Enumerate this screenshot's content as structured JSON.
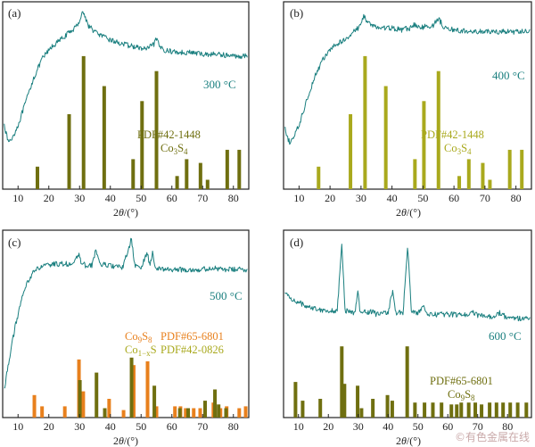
{
  "colors": {
    "curve": "#1a7f7f",
    "olive": "#6f6f10",
    "olive_light": "#a9a91d",
    "orange": "#e8801d",
    "frame": "#222222"
  },
  "xlabel": "2θ/(°)",
  "watermark": "©有色金属在线",
  "chart_data": [
    {
      "type": "line",
      "panel": "(a)",
      "temp": "300 °C",
      "xlim": [
        5,
        85
      ],
      "xticks": [
        10,
        20,
        30,
        40,
        50,
        60,
        70,
        80
      ],
      "grid": false,
      "legend": {
        "code": "PDF#42-1448",
        "formula": "Co3S4"
      },
      "curve_profile": [
        [
          5,
          0.42
        ],
        [
          6,
          0.3
        ],
        [
          7,
          0.25
        ],
        [
          8,
          0.27
        ],
        [
          10,
          0.34
        ],
        [
          12,
          0.44
        ],
        [
          15,
          0.59
        ],
        [
          18,
          0.7
        ],
        [
          21,
          0.76
        ],
        [
          24,
          0.8
        ],
        [
          27,
          0.84
        ],
        [
          29,
          0.87
        ],
        [
          30,
          0.9
        ],
        [
          31,
          0.95
        ],
        [
          32,
          0.91
        ],
        [
          33,
          0.87
        ],
        [
          35,
          0.84
        ],
        [
          38,
          0.81
        ],
        [
          41,
          0.79
        ],
        [
          45,
          0.77
        ],
        [
          48,
          0.76
        ],
        [
          50,
          0.75
        ],
        [
          52,
          0.75
        ],
        [
          54,
          0.77
        ],
        [
          55,
          0.8
        ],
        [
          56,
          0.76
        ],
        [
          58,
          0.74
        ],
        [
          62,
          0.73
        ],
        [
          66,
          0.73
        ],
        [
          70,
          0.72
        ],
        [
          75,
          0.72
        ],
        [
          80,
          0.71
        ],
        [
          85,
          0.71
        ]
      ],
      "reference_series": [
        {
          "name": "PDF#42-1448 Co3S4",
          "color": "olive",
          "peaks": [
            [
              16.3,
              0.12
            ],
            [
              26.6,
              0.4
            ],
            [
              31.3,
              0.71
            ],
            [
              38.0,
              0.55
            ],
            [
              47.4,
              0.16
            ],
            [
              50.3,
              0.47
            ],
            [
              55.0,
              0.63
            ],
            [
              61.7,
              0.07
            ],
            [
              64.8,
              0.16
            ],
            [
              69.3,
              0.14
            ],
            [
              71.6,
              0.05
            ],
            [
              78.0,
              0.21
            ],
            [
              81.9,
              0.21
            ]
          ]
        }
      ]
    },
    {
      "type": "line",
      "panel": "(b)",
      "temp": "400 °C",
      "xlim": [
        5,
        85
      ],
      "xticks": [
        10,
        20,
        30,
        40,
        50,
        60,
        70,
        80
      ],
      "grid": false,
      "legend": {
        "code": "PDF#42-1448",
        "formula": "Co3S4"
      },
      "curve_profile": [
        [
          5,
          0.36
        ],
        [
          6,
          0.28
        ],
        [
          7,
          0.25
        ],
        [
          8,
          0.27
        ],
        [
          10,
          0.34
        ],
        [
          12,
          0.45
        ],
        [
          15,
          0.6
        ],
        [
          18,
          0.7
        ],
        [
          21,
          0.76
        ],
        [
          24,
          0.79
        ],
        [
          27,
          0.83
        ],
        [
          29,
          0.86
        ],
        [
          30,
          0.88
        ],
        [
          31,
          0.93
        ],
        [
          32,
          0.89
        ],
        [
          34,
          0.87
        ],
        [
          36,
          0.86
        ],
        [
          38,
          0.86
        ],
        [
          40,
          0.86
        ],
        [
          43,
          0.85
        ],
        [
          46,
          0.86
        ],
        [
          47,
          0.88
        ],
        [
          49,
          0.86
        ],
        [
          51,
          0.87
        ],
        [
          53,
          0.87
        ],
        [
          55,
          0.91
        ],
        [
          57,
          0.86
        ],
        [
          60,
          0.85
        ],
        [
          65,
          0.84
        ],
        [
          70,
          0.84
        ],
        [
          75,
          0.84
        ],
        [
          80,
          0.84
        ],
        [
          85,
          0.84
        ]
      ],
      "reference_series": [
        {
          "name": "PDF#42-1448 Co3S4",
          "color": "olive_light",
          "peaks": [
            [
              16.3,
              0.12
            ],
            [
              26.6,
              0.4
            ],
            [
              31.3,
              0.71
            ],
            [
              38.0,
              0.55
            ],
            [
              47.4,
              0.16
            ],
            [
              50.3,
              0.47
            ],
            [
              55.0,
              0.63
            ],
            [
              61.7,
              0.07
            ],
            [
              64.8,
              0.16
            ],
            [
              69.3,
              0.14
            ],
            [
              71.6,
              0.05
            ],
            [
              78.0,
              0.21
            ],
            [
              81.9,
              0.21
            ]
          ]
        }
      ]
    },
    {
      "type": "line",
      "panel": "(c)",
      "temp": "500 °C",
      "xlim": [
        5,
        85
      ],
      "xticks": [
        10,
        20,
        30,
        40,
        50,
        60,
        70,
        80
      ],
      "grid": false,
      "legend": {
        "lines": [
          {
            "phase": "Co9S8",
            "code": "PDF#65-6801"
          },
          {
            "phase": "Co1−xS",
            "code": "PDF#42-0826"
          }
        ]
      },
      "curve_profile": [
        [
          5,
          0.1
        ],
        [
          7,
          0.3
        ],
        [
          9,
          0.48
        ],
        [
          11,
          0.62
        ],
        [
          13,
          0.72
        ],
        [
          15,
          0.78
        ],
        [
          17,
          0.8
        ],
        [
          19,
          0.81
        ],
        [
          22,
          0.82
        ],
        [
          25,
          0.82
        ],
        [
          28,
          0.82
        ],
        [
          29.8,
          0.87
        ],
        [
          30.5,
          0.83
        ],
        [
          32,
          0.81
        ],
        [
          34,
          0.81
        ],
        [
          35.3,
          0.9
        ],
        [
          36.5,
          0.82
        ],
        [
          40,
          0.81
        ],
        [
          44,
          0.8
        ],
        [
          46.8,
          0.95
        ],
        [
          48,
          0.81
        ],
        [
          50,
          0.8
        ],
        [
          52.1,
          0.88
        ],
        [
          52.8,
          0.81
        ],
        [
          53.7,
          0.88
        ],
        [
          54.5,
          0.8
        ],
        [
          58,
          0.79
        ],
        [
          62,
          0.79
        ],
        [
          66,
          0.79
        ],
        [
          70,
          0.79
        ],
        [
          73,
          0.8
        ],
        [
          76,
          0.79
        ],
        [
          80,
          0.79
        ],
        [
          85,
          0.79
        ]
      ],
      "reference_series": [
        {
          "name": "Co9S8 PDF#65-6801",
          "color": "orange",
          "peaks": [
            [
              15.3,
              0.12
            ],
            [
              17.8,
              0.06
            ],
            [
              25.2,
              0.06
            ],
            [
              29.8,
              0.31
            ],
            [
              31.2,
              0.14
            ],
            [
              39.6,
              0.1
            ],
            [
              44.3,
              0.04
            ],
            [
              47.6,
              0.28
            ],
            [
              52.1,
              0.3
            ],
            [
              55.0,
              0.06
            ],
            [
              61.0,
              0.06
            ],
            [
              62.8,
              0.06
            ],
            [
              64.5,
              0.05
            ],
            [
              67.1,
              0.05
            ],
            [
              69.2,
              0.05
            ],
            [
              73.5,
              0.08
            ],
            [
              75.8,
              0.05
            ],
            [
              77.8,
              0.06
            ],
            [
              81.9,
              0.05
            ],
            [
              84.0,
              0.06
            ]
          ]
        },
        {
          "name": "Co1−xS PDF#42-0826",
          "color": "olive",
          "peaks": [
            [
              30.1,
              0.2
            ],
            [
              35.5,
              0.24
            ],
            [
              38.2,
              0.05
            ],
            [
              46.9,
              0.32
            ],
            [
              54.3,
              0.17
            ],
            [
              62.6,
              0.05
            ],
            [
              65.3,
              0.05
            ],
            [
              70.8,
              0.09
            ],
            [
              74.0,
              0.15
            ],
            [
              75.2,
              0.07
            ],
            [
              77.6,
              0.05
            ]
          ]
        }
      ]
    },
    {
      "type": "line",
      "panel": "(d)",
      "temp": "600 °C",
      "xlim": [
        5,
        88
      ],
      "xticks": [
        10,
        20,
        30,
        40,
        50,
        60,
        70,
        80
      ],
      "grid": false,
      "legend": {
        "code": "PDF#65-6801",
        "formula": "Co9S8"
      },
      "curve_profile": [
        [
          5,
          0.67
        ],
        [
          8,
          0.63
        ],
        [
          12,
          0.6
        ],
        [
          16,
          0.58
        ],
        [
          20,
          0.57
        ],
        [
          23,
          0.57
        ],
        [
          24.5,
          0.93
        ],
        [
          25.6,
          0.57
        ],
        [
          29,
          0.56
        ],
        [
          29.8,
          0.68
        ],
        [
          30.6,
          0.57
        ],
        [
          33,
          0.56
        ],
        [
          35,
          0.57
        ],
        [
          36,
          0.55
        ],
        [
          40,
          0.56
        ],
        [
          41.5,
          0.68
        ],
        [
          42.5,
          0.56
        ],
        [
          45,
          0.56
        ],
        [
          46.6,
          0.92
        ],
        [
          47.8,
          0.56
        ],
        [
          50,
          0.56
        ],
        [
          52,
          0.59
        ],
        [
          53,
          0.55
        ],
        [
          55,
          0.55
        ],
        [
          60,
          0.55
        ],
        [
          67,
          0.55
        ],
        [
          68,
          0.58
        ],
        [
          69,
          0.55
        ],
        [
          72,
          0.54
        ],
        [
          75,
          0.54
        ],
        [
          77.4,
          0.56
        ],
        [
          79,
          0.54
        ],
        [
          82,
          0.53
        ],
        [
          85,
          0.53
        ]
      ],
      "reference_series": [
        {
          "name": "Co9S8 PDF#65-6801",
          "color": "olive",
          "peaks": [
            [
              9.0,
              0.19
            ],
            [
              11.4,
              0.09
            ],
            [
              17.3,
              0.1
            ],
            [
              24.5,
              0.38
            ],
            [
              25.4,
              0.18
            ],
            [
              29.8,
              0.17
            ],
            [
              31.1,
              0.05
            ],
            [
              34.9,
              0.1
            ],
            [
              39.8,
              0.12
            ],
            [
              41.4,
              0.09
            ],
            [
              46.4,
              0.38
            ],
            [
              49.0,
              0.08
            ],
            [
              52.2,
              0.08
            ],
            [
              55.0,
              0.08
            ],
            [
              57.9,
              0.08
            ],
            [
              61.2,
              0.07
            ],
            [
              63.0,
              0.07
            ],
            [
              64.5,
              0.08
            ],
            [
              67.0,
              0.08
            ],
            [
              69.2,
              0.08
            ],
            [
              71.3,
              0.07
            ],
            [
              74.0,
              0.08
            ],
            [
              76.3,
              0.08
            ],
            [
              78.5,
              0.08
            ],
            [
              80.9,
              0.08
            ],
            [
              83.4,
              0.08
            ],
            [
              86.3,
              0.08
            ]
          ]
        }
      ]
    }
  ]
}
